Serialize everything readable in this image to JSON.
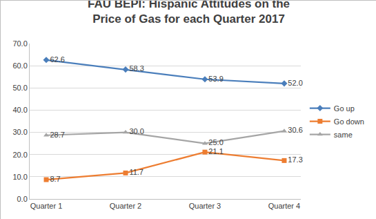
{
  "chart_data": {
    "type": "line",
    "title": "FAU BEPI: Hispanic Attitudes on the Price of Gas for each Quarter 2017",
    "categories": [
      "Quarter 1",
      "Quarter 2",
      "Quarter 3",
      "Quarter 4"
    ],
    "series": [
      {
        "name": "Go up",
        "color": "#4a7ebb",
        "marker": "diamond",
        "values": [
          62.6,
          58.3,
          53.9,
          52.0
        ],
        "value_labels": [
          "62.6",
          "58.3",
          "53.9",
          "52.0"
        ]
      },
      {
        "name": "Go down",
        "color": "#ed7d31",
        "marker": "square",
        "values": [
          8.7,
          11.7,
          21.1,
          17.3
        ],
        "value_labels": [
          "8.7",
          "11.7",
          "21.1",
          "17.3"
        ]
      },
      {
        "name": "same",
        "color": "#a5a5a5",
        "marker": "triangle-up",
        "values": [
          28.7,
          30.0,
          25.0,
          30.6
        ],
        "value_labels": [
          "28.7",
          "30.0",
          "25.0",
          "30.6"
        ]
      }
    ],
    "ylim": [
      0,
      70
    ],
    "yticks": [
      {
        "value": 0,
        "label": "0.0"
      },
      {
        "value": 10,
        "label": "10.0"
      },
      {
        "value": 20,
        "label": "20.0"
      },
      {
        "value": 30,
        "label": "30.0"
      },
      {
        "value": 40,
        "label": "40.0"
      },
      {
        "value": 50,
        "label": "50.0"
      },
      {
        "value": 60,
        "label": "60.0"
      },
      {
        "value": 70,
        "label": "70.0"
      }
    ],
    "grid": true,
    "legend": "right",
    "data_labels": true
  }
}
